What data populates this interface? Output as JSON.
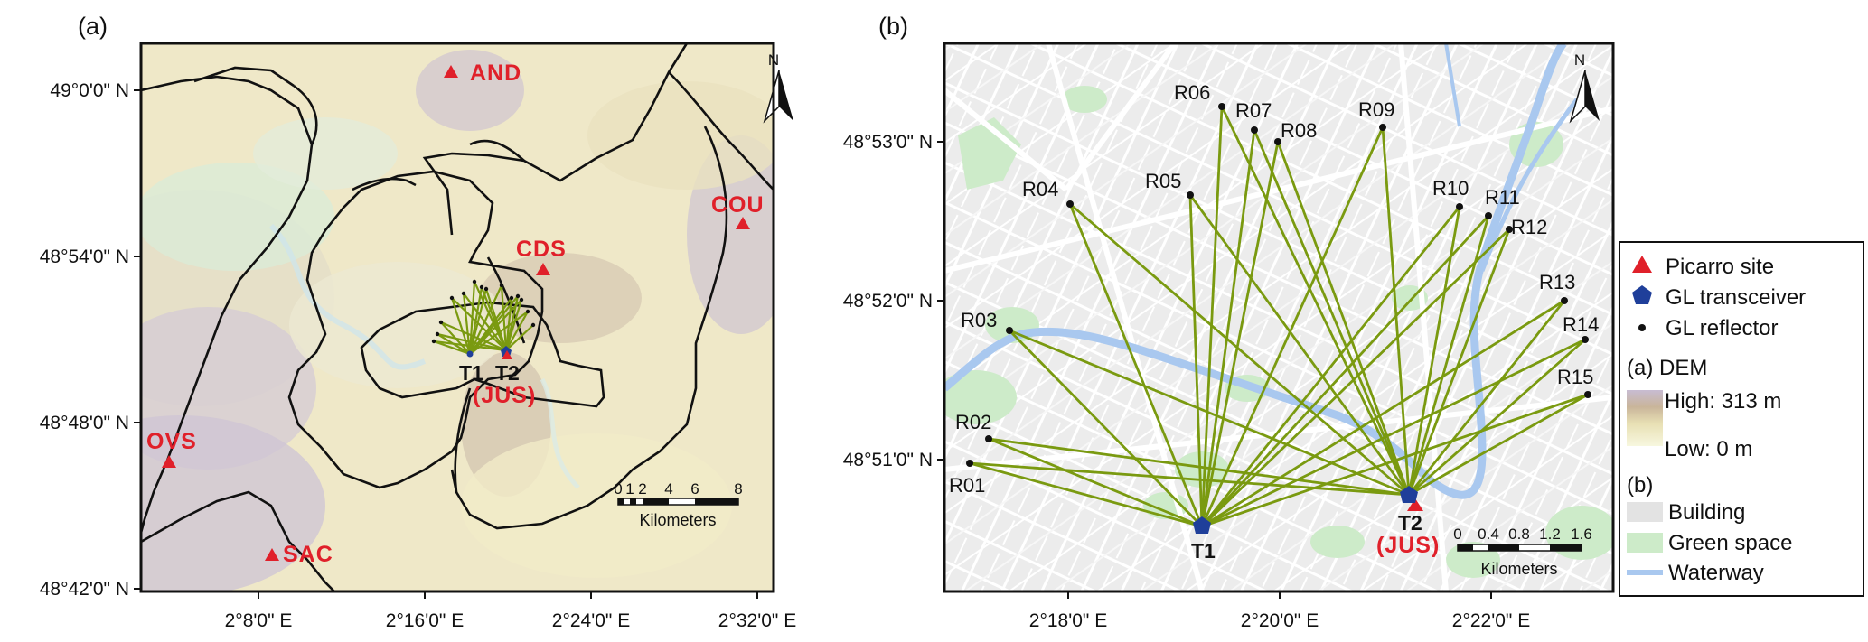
{
  "panel_a": {
    "label": "(a)",
    "north": "N",
    "lat_ticks": [
      "49°0'0\" N",
      "48°54'0\" N",
      "48°48'0\" N",
      "48°42'0\" N"
    ],
    "lon_ticks": [
      "2°8'0\" E",
      "2°16'0\" E",
      "2°24'0\" E",
      "2°32'0\" E"
    ],
    "sites": {
      "and": "AND",
      "cou": "COU",
      "cds": "CDS",
      "ovs": "OVS",
      "sac": "SAC"
    },
    "t1": "T1",
    "t2": "T2",
    "jus": "(JUS)",
    "scale_ticks": [
      "0",
      "1",
      "2",
      "4",
      "6",
      "8"
    ],
    "scale_unit": "Kilometers"
  },
  "panel_b": {
    "label": "(b)",
    "north": "N",
    "lat_ticks": [
      "48°53'0\" N",
      "48°52'0\" N",
      "48°51'0\" N"
    ],
    "lon_ticks": [
      "2°18'0\" E",
      "2°20'0\" E",
      "2°22'0\" E"
    ],
    "reflectors": [
      "R01",
      "R02",
      "R03",
      "R04",
      "R05",
      "R06",
      "R07",
      "R08",
      "R09",
      "R10",
      "R11",
      "R12",
      "R13",
      "R14",
      "R15"
    ],
    "t1": "T1",
    "t2": "T2",
    "jus": "(JUS)",
    "scale_ticks": [
      "0",
      "0.4",
      "0.8",
      "1.2",
      "1.6"
    ],
    "scale_unit": "Kilometers"
  },
  "legend": {
    "picarro": "Picarro site",
    "transceiver": "GL transceiver",
    "reflector": "GL reflector",
    "dem_title": "(a) DEM",
    "dem_high": "High: 313 m",
    "dem_low": "Low: 0 m",
    "b_title": "(b)",
    "building": "Building",
    "green": "Green space",
    "waterway": "Waterway"
  },
  "colors": {
    "picarro": "#e0202a",
    "transceiver": "#1f3f9a",
    "beam": "#7a9a10",
    "waterway": "#a9c8ef",
    "green_space": "#cdebc9",
    "building": "#e3e3e3"
  }
}
